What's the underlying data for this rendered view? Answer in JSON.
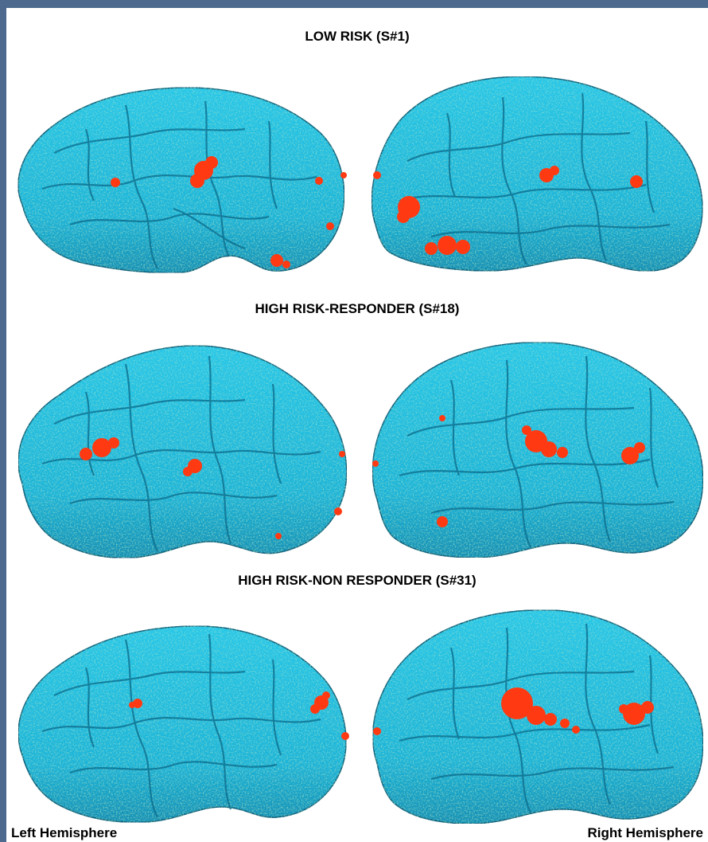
{
  "figure": {
    "rows": [
      {
        "title": "LOW RISK (S#1)"
      },
      {
        "title": "HIGH RISK-RESPONDER (S#18)"
      },
      {
        "title": "HIGH RISK-NON RESPONDER (S#31)"
      }
    ],
    "left_label": "Left Hemisphere",
    "right_label": "Right Hemisphere"
  },
  "colors": {
    "frame": "#4d6a8e",
    "surface": "#23bfe0",
    "surface_dark": "#0e6d8e",
    "speckle": "#3fce8a",
    "activation": "#ff3a12"
  }
}
